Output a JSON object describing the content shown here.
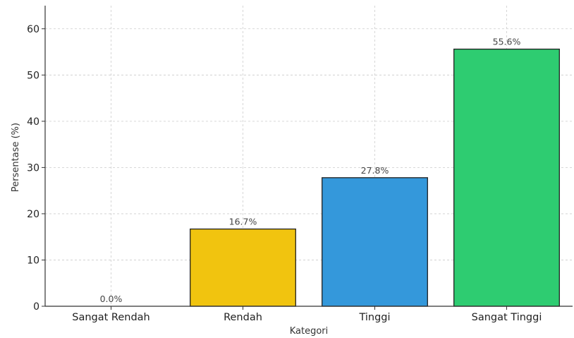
{
  "chart_data": {
    "type": "bar",
    "title": "",
    "xlabel": "Kategori",
    "ylabel": "Persentase (%)",
    "categories": [
      "Sangat Rendah",
      "Rendah",
      "Tinggi",
      "Sangat Tinggi"
    ],
    "values": [
      0.0,
      16.7,
      27.8,
      55.6
    ],
    "data_labels": [
      "0.0%",
      "16.7%",
      "27.8%",
      "55.6%"
    ],
    "colors": [
      "#e74c3c",
      "#f1c40f",
      "#3498db",
      "#2ecc71"
    ],
    "edge_color": "#222222",
    "ylim": [
      0,
      65
    ],
    "yticks": [
      0,
      10,
      20,
      30,
      40,
      50,
      60
    ],
    "ytick_labels": [
      "0",
      "10",
      "20",
      "30",
      "40",
      "50",
      "60"
    ],
    "grid": true,
    "legend": "none"
  }
}
